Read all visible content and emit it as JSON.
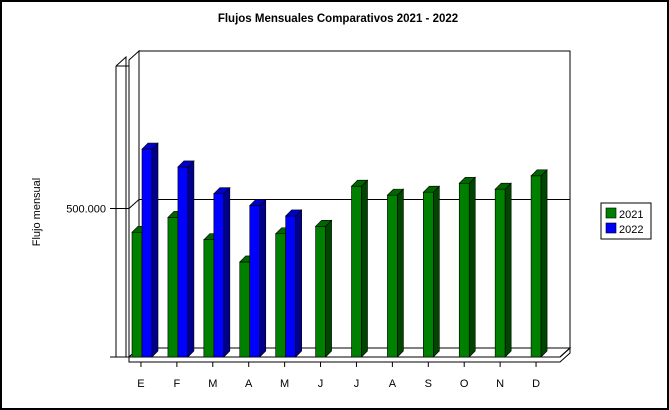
{
  "chart_data": {
    "type": "bar",
    "title": "Flujos Mensuales Comparativos 2021 - 2022",
    "xlabel": "",
    "ylabel": "Flujo mensual",
    "categories": [
      "E",
      "F",
      "M",
      "A",
      "M",
      "J",
      "J",
      "A",
      "S",
      "O",
      "N",
      "D"
    ],
    "yticks": [
      {
        "value": 500000,
        "label": "500.000"
      }
    ],
    "ylim": [
      0,
      1000000
    ],
    "grid": true,
    "three_d": true,
    "legend_position": "right",
    "series": [
      {
        "name": "2021",
        "color": "#008000",
        "values": [
          420000,
          470000,
          395000,
          320000,
          415000,
          440000,
          575000,
          545000,
          555000,
          585000,
          565000,
          610000
        ]
      },
      {
        "name": "2022",
        "color": "#0000ff",
        "values": [
          700000,
          640000,
          550000,
          510000,
          475000,
          null,
          null,
          null,
          null,
          null,
          null,
          null
        ]
      }
    ]
  }
}
